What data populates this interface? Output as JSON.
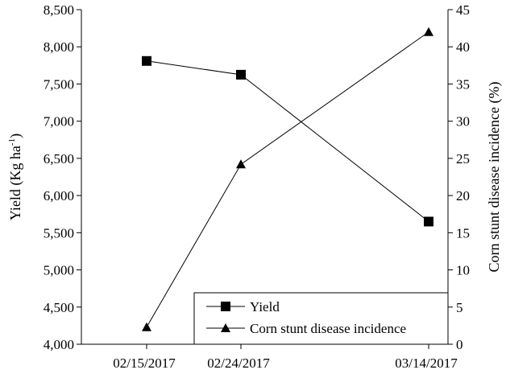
{
  "chart_data": {
    "type": "line",
    "categories": [
      "02/15/2017",
      "02/24/2017",
      "03/14/2017"
    ],
    "x_dates": [
      "2017-02-15",
      "2017-02-24",
      "2017-03-14"
    ],
    "y_left": {
      "label_main": "Yield (Kg ha",
      "label_sup": "-1",
      "label_close": ")",
      "range": [
        4000,
        8500
      ],
      "ticks": [
        "4,000",
        "4,500",
        "5,000",
        "5,500",
        "6,000",
        "6,500",
        "7,000",
        "7,500",
        "8,000",
        "8,500"
      ]
    },
    "y_right": {
      "label": "Corn stunt disease incidence (%)",
      "range": [
        0,
        45
      ],
      "ticks": [
        "0",
        "5",
        "10",
        "15",
        "20",
        "25",
        "30",
        "35",
        "40",
        "45"
      ]
    },
    "series": [
      {
        "name": "Yield",
        "axis": "left",
        "marker": "square",
        "values": [
          7810,
          7625,
          5650
        ]
      },
      {
        "name": "Corn stunt disease incidence",
        "axis": "right",
        "marker": "triangle",
        "values": [
          2.3,
          24.2,
          42
        ]
      }
    ],
    "legend_position": "bottom-right",
    "grid": false
  }
}
